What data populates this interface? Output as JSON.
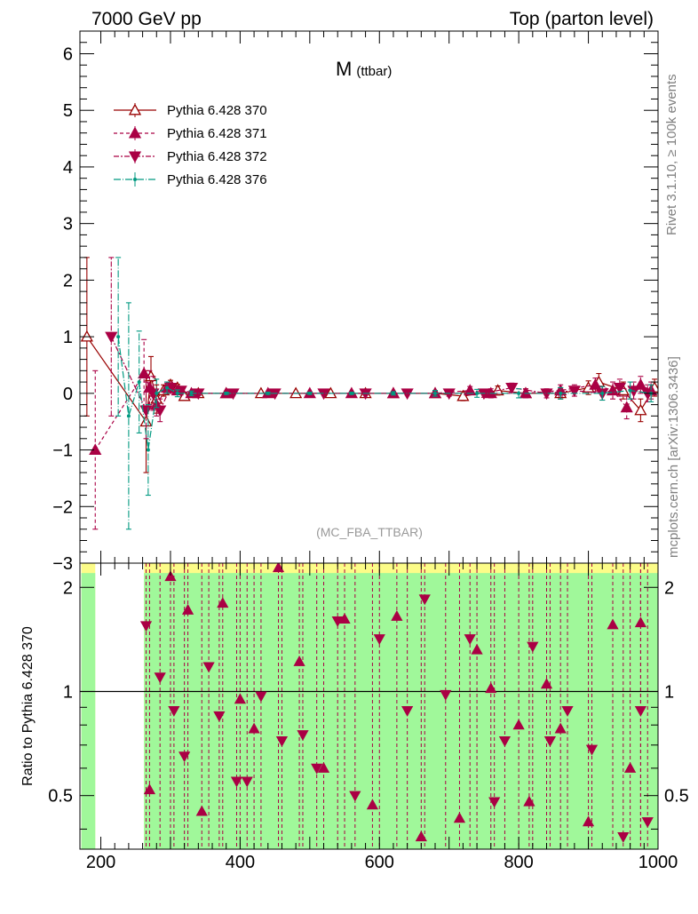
{
  "header": {
    "left": "7000 GeV pp",
    "right": "Top (parton level)"
  },
  "side_labels": {
    "rivet": "Rivet 3.1.10, ≥ 100k events",
    "mcplots": "mcplots.cern.ch [arXiv:1306.3436]"
  },
  "colors": {
    "p370": "#990000",
    "p371": "#aa0044",
    "p372": "#aa0044",
    "p376": "#009980",
    "band_green": "#a0f89a",
    "band_yellow": "#fcfc88"
  },
  "chart_data": [
    {
      "type": "line",
      "title": "M",
      "title_sub": "(ttbar)",
      "watermark": "(MC_FBA_TTBAR)",
      "xlabel": "",
      "ylabel": "",
      "xlim": [
        170,
        1000
      ],
      "ylim": [
        -3,
        6.4
      ],
      "xticks": [
        200,
        400,
        600,
        800,
        1000
      ],
      "yticks": [
        -3,
        -2,
        -1,
        0,
        1,
        2,
        3,
        4,
        5,
        6
      ],
      "ytick_labels": [
        "−3",
        "−2",
        "−1",
        "0",
        "1",
        "2",
        "3",
        "4",
        "5",
        "6"
      ],
      "legend_position": "top-left",
      "series": [
        {
          "name": "Pythia 6.428 370",
          "key": "p370",
          "marker": "triangle-up-open",
          "dash": "",
          "x": [
            180,
            265,
            272,
            280,
            290,
            300,
            310,
            320,
            340,
            380,
            430,
            480,
            530,
            580,
            620,
            680,
            720,
            770,
            810,
            860,
            900,
            915,
            950,
            975,
            995
          ],
          "y": [
            1.0,
            -0.5,
            0.3,
            -0.1,
            0.05,
            0.15,
            0.1,
            -0.05,
            0.0,
            0.0,
            0.0,
            0.0,
            0.0,
            0.0,
            0.0,
            0.0,
            -0.05,
            0.05,
            0.0,
            0.0,
            0.1,
            0.2,
            0.05,
            -0.3,
            0.1
          ],
          "err": [
            1.4,
            0.9,
            0.35,
            0.25,
            0.1,
            0.08,
            0.06,
            0.05,
            0.03,
            0.02,
            0.02,
            0.02,
            0.02,
            0.02,
            0.03,
            0.05,
            0.08,
            0.08,
            0.08,
            0.1,
            0.12,
            0.15,
            0.15,
            0.2,
            0.15
          ]
        },
        {
          "name": "Pythia 6.428 371",
          "key": "p371",
          "marker": "triangle-up-filled",
          "dash": "4,3",
          "x": [
            192,
            262,
            270,
            280,
            295,
            310,
            330,
            380,
            440,
            500,
            560,
            620,
            680,
            730,
            760,
            810,
            860,
            910,
            935,
            955,
            975,
            990
          ],
          "y": [
            -1.0,
            0.35,
            0.1,
            -0.2,
            0.1,
            0.05,
            0.0,
            0.0,
            0.0,
            0.0,
            0.0,
            0.0,
            0.0,
            0.05,
            0.0,
            0.0,
            0.05,
            0.15,
            0.05,
            -0.25,
            0.15,
            0.05
          ],
          "err": [
            1.4,
            0.6,
            0.3,
            0.2,
            0.1,
            0.06,
            0.04,
            0.02,
            0.02,
            0.02,
            0.02,
            0.03,
            0.05,
            0.07,
            0.08,
            0.08,
            0.1,
            0.12,
            0.15,
            0.2,
            0.15,
            0.15
          ]
        },
        {
          "name": "Pythia 6.428 372",
          "key": "p372",
          "marker": "triangle-down-filled",
          "dash": "6,2,2,2",
          "x": [
            215,
            265,
            275,
            285,
            300,
            315,
            340,
            390,
            450,
            520,
            580,
            640,
            700,
            750,
            790,
            840,
            880,
            920,
            945,
            965,
            985
          ],
          "y": [
            1.0,
            -0.3,
            0.0,
            -0.3,
            0.1,
            0.05,
            0.0,
            0.0,
            0.0,
            0.0,
            0.0,
            0.0,
            0.0,
            0.0,
            0.1,
            0.0,
            0.05,
            0.0,
            0.1,
            0.05,
            0.0
          ],
          "err": [
            1.4,
            0.5,
            0.3,
            0.2,
            0.1,
            0.06,
            0.04,
            0.02,
            0.02,
            0.02,
            0.02,
            0.03,
            0.05,
            0.07,
            0.08,
            0.08,
            0.1,
            0.12,
            0.15,
            0.15,
            0.15
          ]
        },
        {
          "name": "Pythia 6.428 376",
          "key": "p376",
          "marker": "dot",
          "dash": "8,2,1,2",
          "x": [
            225,
            240,
            255,
            268,
            280,
            295,
            310,
            330,
            380,
            440,
            500,
            560,
            620,
            680,
            740,
            800,
            860,
            920,
            960,
            990
          ],
          "y": [
            1.0,
            -0.4,
            0.2,
            -1.0,
            0.0,
            0.1,
            0.0,
            0.0,
            0.0,
            0.0,
            0.0,
            0.0,
            0.0,
            0.0,
            0.0,
            0.0,
            0.0,
            0.0,
            0.05,
            0.0
          ],
          "err": [
            1.4,
            2.0,
            0.9,
            0.8,
            0.25,
            0.1,
            0.06,
            0.04,
            0.02,
            0.02,
            0.02,
            0.02,
            0.03,
            0.05,
            0.07,
            0.08,
            0.1,
            0.12,
            0.15,
            0.15
          ]
        }
      ]
    },
    {
      "type": "scatter",
      "ylabel": "Ratio to Pythia 6.428 370",
      "xlim": [
        170,
        1000
      ],
      "ylim": [
        0.35,
        2.35
      ],
      "xticks": [
        200,
        400,
        600,
        800,
        1000
      ],
      "yticks": [
        0.5,
        1,
        2
      ],
      "ytick_labels": [
        "0.5",
        "1",
        "2"
      ],
      "reference_line": 1,
      "band_bins": [
        [
          172,
          192
        ],
        [
          262,
          1000
        ]
      ],
      "series": [
        {
          "name": "Pythia 6.428 371",
          "key": "p371",
          "marker": "triangle-up-filled",
          "x": [
            270,
            300,
            325,
            345,
            375,
            400,
            420,
            455,
            485,
            520,
            550,
            590,
            625,
            660,
            715,
            740,
            760,
            800,
            815,
            840,
            860,
            900,
            935,
            960,
            975
          ],
          "y": [
            0.52,
            2.15,
            1.72,
            0.45,
            1.8,
            0.95,
            0.78,
            2.28,
            1.22,
            0.6,
            1.62,
            0.47,
            1.65,
            0.38,
            0.43,
            1.32,
            1.02,
            0.8,
            0.48,
            1.05,
            0.78,
            0.42,
            1.56,
            0.6,
            1.58
          ]
        },
        {
          "name": "Pythia 6.428 372",
          "key": "p372",
          "marker": "triangle-down-filled",
          "x": [
            265,
            285,
            305,
            320,
            355,
            370,
            395,
            410,
            430,
            460,
            490,
            510,
            540,
            565,
            600,
            640,
            665,
            695,
            730,
            765,
            780,
            820,
            845,
            870,
            905,
            950,
            975,
            985
          ],
          "y": [
            1.55,
            1.1,
            0.88,
            0.65,
            1.18,
            0.85,
            0.55,
            0.55,
            0.97,
            0.72,
            0.75,
            0.6,
            1.6,
            0.5,
            1.42,
            0.88,
            1.85,
            0.98,
            1.42,
            0.48,
            0.72,
            1.35,
            0.72,
            0.88,
            0.68,
            0.38,
            0.88,
            0.42
          ]
        }
      ]
    }
  ]
}
